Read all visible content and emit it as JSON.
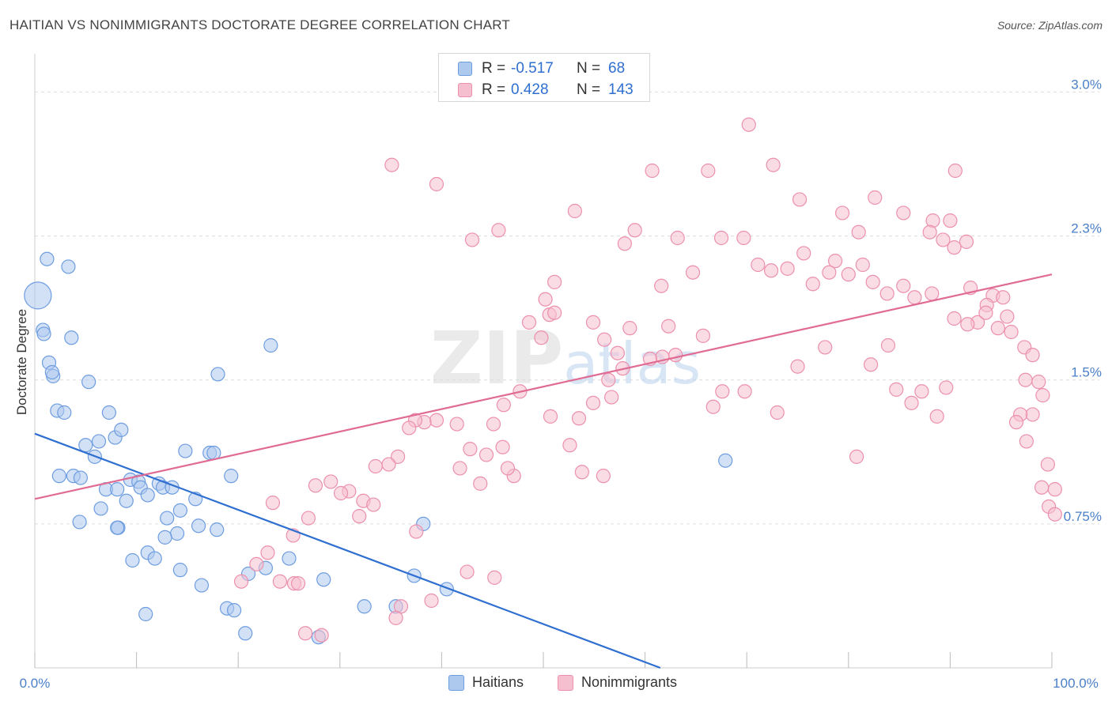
{
  "chart_data": {
    "type": "scatter",
    "title": "HAITIAN VS NONIMMIGRANTS DOCTORATE DEGREE CORRELATION CHART",
    "source": "Source: ZipAtlas.com",
    "xlabel": "",
    "ylabel": "Doctorate Degree",
    "xlim": [
      0,
      100
    ],
    "ylim": [
      0,
      3.15
    ],
    "y_ticks": [
      {
        "value": 0.75,
        "label": "0.75%"
      },
      {
        "value": 1.5,
        "label": "1.5%"
      },
      {
        "value": 2.25,
        "label": "2.3%"
      },
      {
        "value": 3.0,
        "label": "3.0%"
      }
    ],
    "x_tick_labels": {
      "min": "0.0%",
      "max": "100.0%"
    },
    "watermark": "ZIPatlas",
    "legend": {
      "r_label": "R =",
      "n_label": "N =",
      "entries": [
        {
          "name": "Haitians",
          "r": "-0.517",
          "n": "68"
        },
        {
          "name": "Nonimmigrants",
          "r": "0.428",
          "n": "143"
        }
      ]
    },
    "colors": {
      "haitians_fill": "#aec9ee",
      "haitians_stroke": "#6d9de0",
      "haitians_line": "#2f6fd0",
      "nonimmigrants_fill": "#f6bfd0",
      "nonimmigrants_stroke": "#ec90ad",
      "nonimmigrants_line": "#e06b93"
    },
    "series": [
      {
        "name": "Haitians",
        "trend": {
          "x0": 0,
          "y0": 1.22,
          "x1": 61.5,
          "y1": 0.0
        },
        "points": [
          [
            0.3,
            1.94,
            "big"
          ],
          [
            1.2,
            2.13
          ],
          [
            3.3,
            2.09
          ],
          [
            0.8,
            1.76
          ],
          [
            0.9,
            1.74
          ],
          [
            3.6,
            1.72
          ],
          [
            1.4,
            1.59
          ],
          [
            1.8,
            1.52
          ],
          [
            5.3,
            1.49
          ],
          [
            2.2,
            1.34
          ],
          [
            2.9,
            1.33
          ],
          [
            7.3,
            1.33
          ],
          [
            5.0,
            1.16
          ],
          [
            6.3,
            1.18
          ],
          [
            7.9,
            1.2
          ],
          [
            8.5,
            1.24
          ],
          [
            5.9,
            1.1
          ],
          [
            2.4,
            1.0
          ],
          [
            3.8,
            1.0
          ],
          [
            4.5,
            0.99
          ],
          [
            9.4,
            0.98
          ],
          [
            10.2,
            0.97
          ],
          [
            10.4,
            0.94
          ],
          [
            11.1,
            0.9
          ],
          [
            12.2,
            0.96
          ],
          [
            12.6,
            0.94
          ],
          [
            13.5,
            0.94
          ],
          [
            7.0,
            0.93
          ],
          [
            8.1,
            0.93
          ],
          [
            9.0,
            0.87
          ],
          [
            6.5,
            0.83
          ],
          [
            4.4,
            0.76
          ],
          [
            13.0,
            0.78
          ],
          [
            14.3,
            0.82
          ],
          [
            15.8,
            0.88
          ],
          [
            16.1,
            0.74
          ],
          [
            14.0,
            0.7
          ],
          [
            12.8,
            0.68
          ],
          [
            11.1,
            0.6
          ],
          [
            11.8,
            0.57
          ],
          [
            9.6,
            0.56
          ],
          [
            8.2,
            0.73
          ],
          [
            17.9,
            0.72
          ],
          [
            14.3,
            0.51
          ],
          [
            16.4,
            0.43
          ],
          [
            18.9,
            0.31
          ],
          [
            19.6,
            0.3
          ],
          [
            21.0,
            0.49
          ],
          [
            22.7,
            0.52
          ],
          [
            20.7,
            0.18
          ],
          [
            10.9,
            0.28
          ],
          [
            25.0,
            0.57
          ],
          [
            27.9,
            0.16
          ],
          [
            28.4,
            0.46
          ],
          [
            32.4,
            0.32
          ],
          [
            35.5,
            0.32
          ],
          [
            37.3,
            0.48
          ],
          [
            38.2,
            0.75
          ],
          [
            40.5,
            0.41
          ],
          [
            14.8,
            1.13
          ],
          [
            17.2,
            1.12
          ],
          [
            17.6,
            1.12
          ],
          [
            18.0,
            1.53
          ],
          [
            23.2,
            1.68
          ],
          [
            19.3,
            1.0
          ],
          [
            8.1,
            0.73
          ],
          [
            1.7,
            1.54
          ],
          [
            67.9,
            1.08
          ]
        ]
      },
      {
        "name": "Nonimmigrants",
        "trend": {
          "x0": 0,
          "y0": 0.88,
          "x1": 100,
          "y1": 2.05
        },
        "points": [
          [
            70.2,
            2.83
          ],
          [
            35.1,
            2.62
          ],
          [
            39.5,
            2.52
          ],
          [
            60.7,
            2.59
          ],
          [
            72.6,
            2.62
          ],
          [
            90.5,
            2.59
          ],
          [
            66.2,
            2.59
          ],
          [
            75.2,
            2.44
          ],
          [
            82.6,
            2.45
          ],
          [
            85.4,
            2.37
          ],
          [
            88.3,
            2.33
          ],
          [
            90.0,
            2.33
          ],
          [
            53.1,
            2.38
          ],
          [
            43.0,
            2.23
          ],
          [
            45.6,
            2.28
          ],
          [
            59.0,
            2.28
          ],
          [
            67.5,
            2.24
          ],
          [
            69.7,
            2.24
          ],
          [
            79.4,
            2.37
          ],
          [
            81.0,
            2.27
          ],
          [
            88.0,
            2.27
          ],
          [
            89.3,
            2.23
          ],
          [
            75.6,
            2.16
          ],
          [
            78.7,
            2.12
          ],
          [
            81.4,
            2.1
          ],
          [
            71.1,
            2.1
          ],
          [
            72.4,
            2.07
          ],
          [
            74.0,
            2.08
          ],
          [
            76.5,
            2.0
          ],
          [
            80.0,
            2.05
          ],
          [
            82.4,
            2.01
          ],
          [
            85.4,
            1.99
          ],
          [
            83.8,
            1.95
          ],
          [
            86.5,
            1.93
          ],
          [
            88.2,
            1.95
          ],
          [
            92.0,
            1.98
          ],
          [
            64.7,
            2.06
          ],
          [
            63.2,
            2.24
          ],
          [
            78.1,
            2.06
          ],
          [
            90.4,
            2.19
          ],
          [
            91.6,
            2.22
          ],
          [
            94.2,
            1.94
          ],
          [
            95.2,
            1.93
          ],
          [
            93.6,
            1.89
          ],
          [
            92.7,
            1.8
          ],
          [
            90.4,
            1.82
          ],
          [
            91.7,
            1.79
          ],
          [
            93.5,
            1.85
          ],
          [
            95.6,
            1.83
          ],
          [
            94.7,
            1.77
          ],
          [
            96.0,
            1.75
          ],
          [
            97.3,
            1.67
          ],
          [
            98.1,
            1.63
          ],
          [
            97.4,
            1.5
          ],
          [
            98.7,
            1.49
          ],
          [
            99.1,
            1.42
          ],
          [
            98.1,
            1.32
          ],
          [
            96.9,
            1.32
          ],
          [
            96.5,
            1.28
          ],
          [
            97.5,
            1.18
          ],
          [
            99.6,
            1.06
          ],
          [
            100.3,
            0.93
          ],
          [
            99.0,
            0.94
          ],
          [
            99.7,
            0.84
          ],
          [
            100.3,
            0.8
          ],
          [
            75.0,
            1.57
          ],
          [
            77.7,
            1.67
          ],
          [
            82.2,
            1.58
          ],
          [
            83.9,
            1.68
          ],
          [
            84.7,
            1.45
          ],
          [
            86.2,
            1.38
          ],
          [
            87.2,
            1.44
          ],
          [
            88.7,
            1.31
          ],
          [
            89.6,
            1.46
          ],
          [
            80.8,
            1.1
          ],
          [
            73.0,
            1.33
          ],
          [
            69.8,
            1.44
          ],
          [
            67.6,
            1.44
          ],
          [
            66.7,
            1.36
          ],
          [
            63.0,
            1.63
          ],
          [
            61.7,
            1.62
          ],
          [
            57.8,
            1.56
          ],
          [
            56.7,
            1.41
          ],
          [
            54.9,
            1.38
          ],
          [
            53.5,
            1.3
          ],
          [
            52.6,
            1.16
          ],
          [
            53.8,
            1.02
          ],
          [
            55.9,
            1.0
          ],
          [
            47.1,
            1.0
          ],
          [
            46.5,
            1.04
          ],
          [
            46.0,
            1.15
          ],
          [
            44.4,
            1.11
          ],
          [
            43.8,
            0.96
          ],
          [
            42.8,
            1.14
          ],
          [
            45.1,
            1.27
          ],
          [
            41.8,
            1.04
          ],
          [
            41.5,
            1.27
          ],
          [
            39.5,
            1.29
          ],
          [
            38.3,
            1.28
          ],
          [
            37.4,
            1.29
          ],
          [
            36.8,
            1.25
          ],
          [
            35.7,
            1.1
          ],
          [
            34.8,
            1.06
          ],
          [
            33.5,
            1.05
          ],
          [
            32.3,
            0.87
          ],
          [
            31.9,
            0.79
          ],
          [
            30.9,
            0.92
          ],
          [
            30.1,
            0.91
          ],
          [
            29.1,
            0.97
          ],
          [
            27.6,
            0.95
          ],
          [
            26.9,
            0.78
          ],
          [
            25.4,
            0.69
          ],
          [
            23.4,
            0.86
          ],
          [
            22.9,
            0.6
          ],
          [
            21.8,
            0.54
          ],
          [
            20.3,
            0.45
          ],
          [
            25.5,
            0.44
          ],
          [
            25.9,
            0.44
          ],
          [
            24.1,
            0.45
          ],
          [
            26.6,
            0.18
          ],
          [
            28.2,
            0.17
          ],
          [
            33.3,
            0.85
          ],
          [
            36.0,
            0.32
          ],
          [
            35.5,
            0.26
          ],
          [
            37.5,
            0.71
          ],
          [
            39.0,
            0.35
          ],
          [
            42.5,
            0.5
          ],
          [
            45.2,
            0.47
          ],
          [
            58.5,
            1.77
          ],
          [
            50.6,
            1.84
          ],
          [
            51.1,
            1.85
          ],
          [
            48.6,
            1.8
          ],
          [
            51.1,
            2.01
          ],
          [
            50.2,
            1.92
          ],
          [
            54.9,
            1.8
          ],
          [
            61.6,
            1.99
          ],
          [
            65.7,
            1.73
          ],
          [
            62.3,
            1.78
          ],
          [
            49.8,
            1.72
          ],
          [
            56.0,
            1.71
          ],
          [
            57.3,
            1.64
          ],
          [
            60.5,
            1.61
          ],
          [
            58.0,
            2.21
          ],
          [
            56.4,
            1.5
          ],
          [
            50.7,
            1.31
          ],
          [
            47.7,
            1.44
          ],
          [
            46.1,
            1.37
          ]
        ]
      }
    ]
  }
}
